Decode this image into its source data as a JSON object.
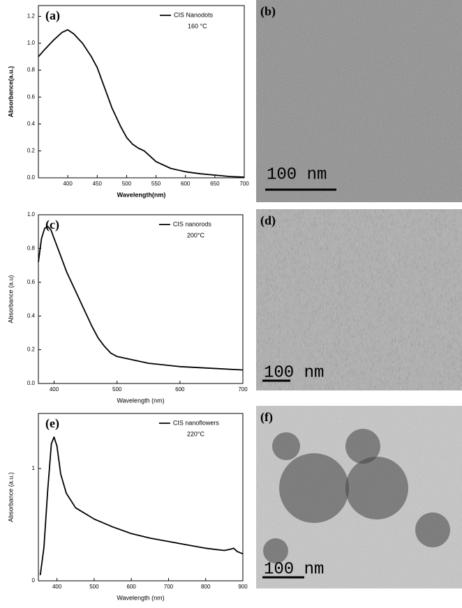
{
  "chart_data": [
    {
      "type": "line",
      "panel": "(a)",
      "x_label": "Wavelength(nm)",
      "y_label": "Absorbance(a.u.)",
      "annotation": "160 °C",
      "x": [
        350,
        360,
        375,
        390,
        400,
        410,
        425,
        440,
        450,
        460,
        475,
        490,
        500,
        510,
        520,
        530,
        540,
        550,
        575,
        600,
        625,
        650,
        675,
        700
      ],
      "series": [
        {
          "name": "CIS Nanodots",
          "color": "#000000",
          "values": [
            0.9,
            0.95,
            1.02,
            1.08,
            1.1,
            1.07,
            1.0,
            0.9,
            0.82,
            0.7,
            0.52,
            0.38,
            0.3,
            0.25,
            0.22,
            0.2,
            0.16,
            0.12,
            0.07,
            0.045,
            0.03,
            0.02,
            0.01,
            0.005
          ]
        }
      ],
      "xlim": [
        350,
        700
      ],
      "xticks": [
        400,
        450,
        500,
        550,
        600,
        650,
        700
      ],
      "ylim": [
        0,
        1.28
      ],
      "yticks": [
        {
          "value": 0,
          "label": "0.0"
        },
        0.2,
        0.4,
        0.6,
        0.8,
        {
          "value": 1,
          "label": "1.0"
        },
        1.2
      ]
    },
    {
      "type": "line",
      "panel": "(c)",
      "x_label": "Wavelength (nm)",
      "y_label": "Absorbance (a.u)",
      "annotation": "200°C",
      "x": [
        375,
        380,
        385,
        390,
        395,
        400,
        410,
        420,
        430,
        440,
        450,
        460,
        470,
        480,
        490,
        500,
        525,
        550,
        575,
        600,
        650,
        700
      ],
      "series": [
        {
          "name": "CIS nanorods",
          "color": "#000000",
          "values": [
            0.72,
            0.86,
            0.92,
            0.93,
            0.91,
            0.86,
            0.76,
            0.66,
            0.58,
            0.5,
            0.42,
            0.34,
            0.27,
            0.22,
            0.18,
            0.16,
            0.14,
            0.12,
            0.11,
            0.1,
            0.09,
            0.08
          ]
        }
      ],
      "xlim": [
        375,
        700
      ],
      "xticks": [
        400,
        500,
        600,
        700
      ],
      "ylim": [
        0,
        1
      ],
      "yticks": [
        {
          "value": 0,
          "label": "0.0"
        },
        0.2,
        0.4,
        0.6,
        0.8,
        {
          "value": 1,
          "label": "1.0"
        }
      ]
    },
    {
      "type": "line",
      "panel": "(e)",
      "x_label": "Wavelength (nm)",
      "y_label": "Absorbance (a.u.)",
      "annotation": "220°C",
      "x": [
        355,
        365,
        375,
        385,
        392,
        400,
        410,
        425,
        450,
        500,
        550,
        600,
        650,
        700,
        750,
        800,
        850,
        865,
        875,
        885,
        900
      ],
      "series": [
        {
          "name": "CIS nanoflowers",
          "color": "#000000",
          "values": [
            0.05,
            0.3,
            0.8,
            1.22,
            1.28,
            1.2,
            0.95,
            0.78,
            0.65,
            0.55,
            0.48,
            0.42,
            0.38,
            0.35,
            0.32,
            0.29,
            0.27,
            0.28,
            0.29,
            0.26,
            0.24
          ]
        }
      ],
      "xlim": [
        350,
        900
      ],
      "xticks": [
        400,
        500,
        600,
        700,
        800,
        900
      ],
      "ylim": [
        0,
        1.49
      ],
      "yticks": [
        0,
        1
      ]
    }
  ],
  "images": [
    {
      "label": "(b)",
      "scale_bar": "100 nm"
    },
    {
      "label": "(d)",
      "scale_bar": "100 nm"
    },
    {
      "label": "(f)",
      "scale_bar": "100 nm"
    }
  ]
}
